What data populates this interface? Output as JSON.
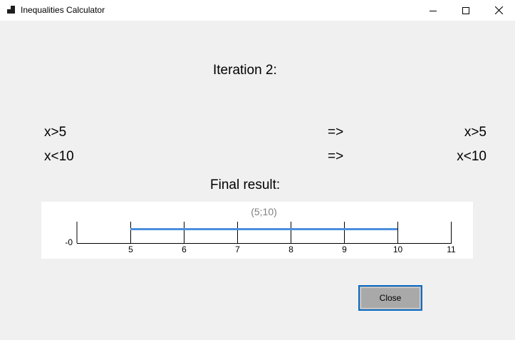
{
  "window": {
    "title": "Inequalities Calculator",
    "icon": "app-icon",
    "controls": [
      "minimize-icon",
      "maximize-icon",
      "close-icon"
    ]
  },
  "content": {
    "iteration_label": "Iteration 2:",
    "rows": [
      {
        "input": "x>5",
        "arrow": "=>",
        "result": "x>5"
      },
      {
        "input": "x<10",
        "arrow": "=>",
        "result": "x<10"
      }
    ],
    "final_result_label": "Final result:"
  },
  "number_line": {
    "interval_label": "(5;10)",
    "origin_label": "-0",
    "ticks": [
      "5",
      "6",
      "7",
      "8",
      "9",
      "10",
      "11"
    ],
    "interval_start": 5,
    "interval_end": 10,
    "interval_color": "#4a8fdb"
  },
  "buttons": {
    "close_label": "Close"
  },
  "colors": {
    "window_bg": "#f0f0f0",
    "button_border": "#0f6dc8",
    "button_bg": "#a9a9a9"
  }
}
